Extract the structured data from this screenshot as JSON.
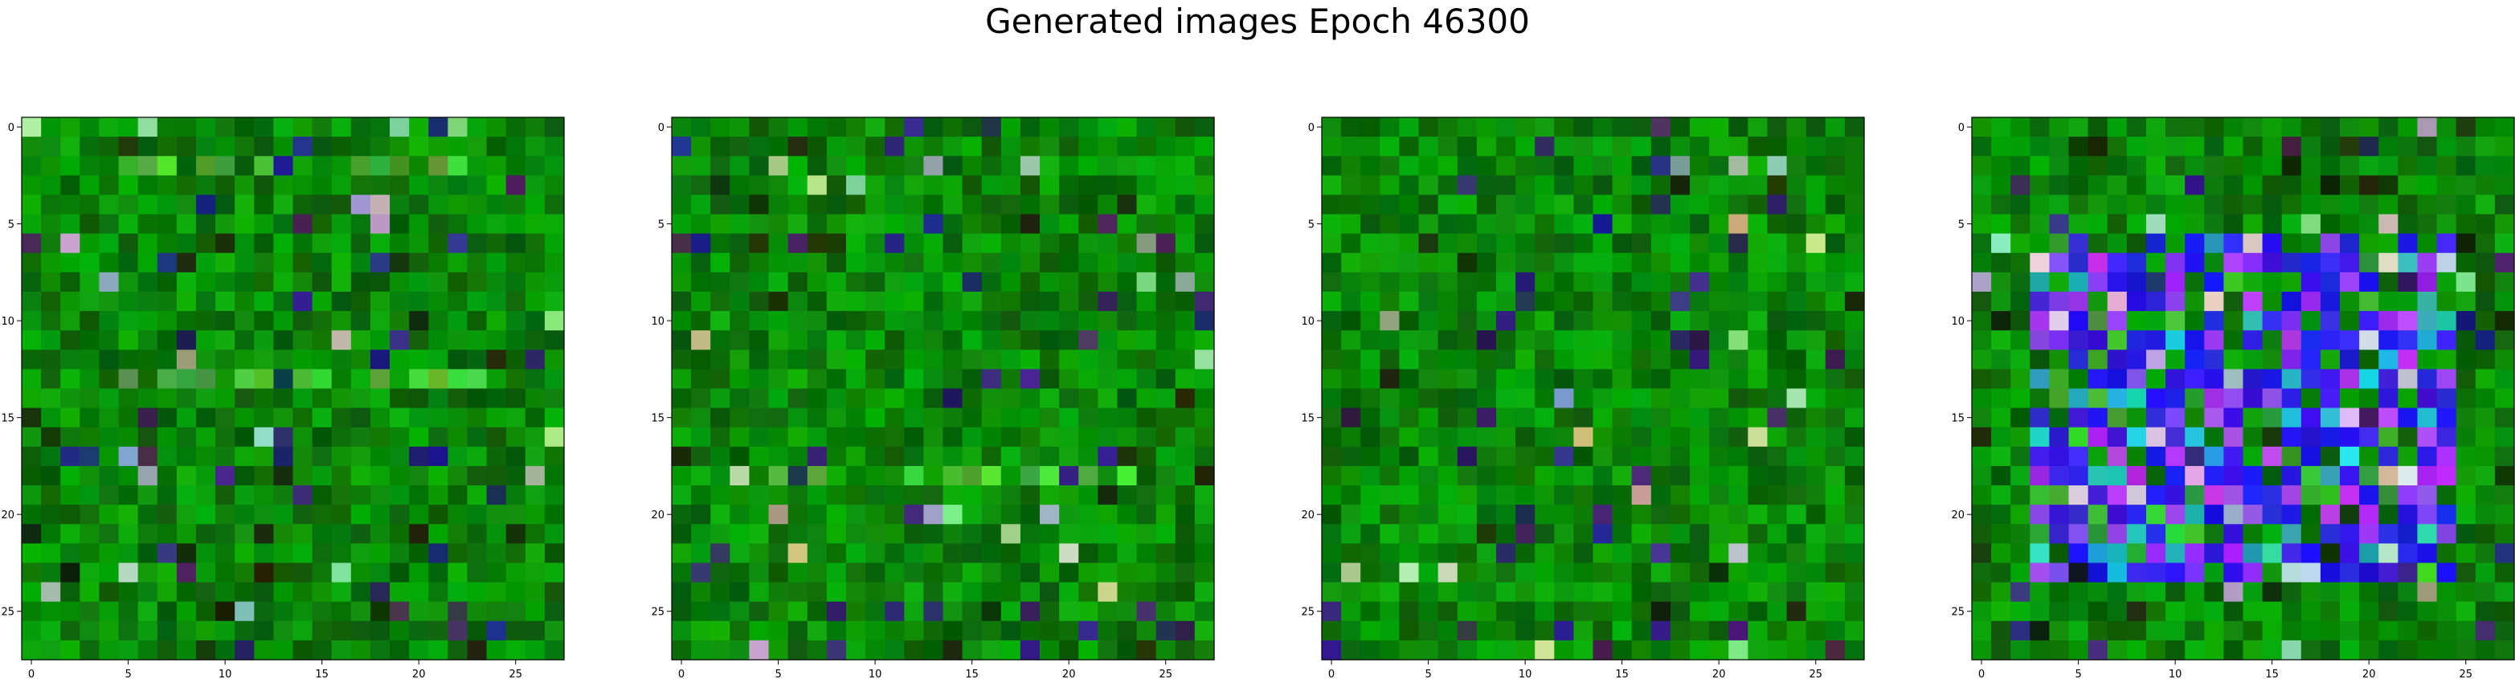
{
  "figure": {
    "title": "Generated images Epoch 46300"
  },
  "chart_data": [
    {
      "type": "heatmap",
      "title": "",
      "xlabel": "",
      "ylabel": "",
      "grid_size": [
        28,
        28
      ],
      "xlim": [
        -0.5,
        27.5
      ],
      "ylim": [
        27.5,
        -0.5
      ],
      "xticks": [
        0,
        5,
        10,
        15,
        20,
        25
      ],
      "yticks": [
        0,
        5,
        10,
        15,
        20,
        25
      ],
      "pixel_style": "noisy-green",
      "dominant_color": "#0a7a0a",
      "highlight_rows": [
        2,
        13
      ]
    },
    {
      "type": "heatmap",
      "title": "",
      "xlabel": "",
      "ylabel": "",
      "grid_size": [
        28,
        28
      ],
      "xlim": [
        -0.5,
        27.5
      ],
      "ylim": [
        27.5,
        -0.5
      ],
      "xticks": [
        0,
        5,
        10,
        15,
        20,
        25
      ],
      "yticks": [
        0,
        5,
        10,
        15,
        20,
        25
      ],
      "pixel_style": "noisy-green",
      "dominant_color": "#0a7a0a",
      "highlight_rows": [
        18
      ]
    },
    {
      "type": "heatmap",
      "title": "",
      "xlabel": "",
      "ylabel": "",
      "grid_size": [
        28,
        28
      ],
      "xlim": [
        -0.5,
        27.5
      ],
      "ylim": [
        27.5,
        -0.5
      ],
      "xticks": [
        0,
        5,
        10,
        15,
        20,
        25
      ],
      "yticks": [
        0,
        5,
        10,
        15,
        20,
        25
      ],
      "pixel_style": "noisy-green",
      "dominant_color": "#0a6e0a",
      "highlight_rows": []
    },
    {
      "type": "heatmap",
      "title": "",
      "xlabel": "",
      "ylabel": "",
      "grid_size": [
        28,
        28
      ],
      "xlim": [
        -0.5,
        27.5
      ],
      "ylim": [
        27.5,
        -0.5
      ],
      "xticks": [
        0,
        5,
        10,
        15,
        20,
        25
      ],
      "yticks": [
        0,
        5,
        10,
        15,
        20,
        25
      ],
      "pixel_style": "blue-purple-center",
      "dominant_color": "#1a10e0",
      "highlight_rows": []
    }
  ]
}
